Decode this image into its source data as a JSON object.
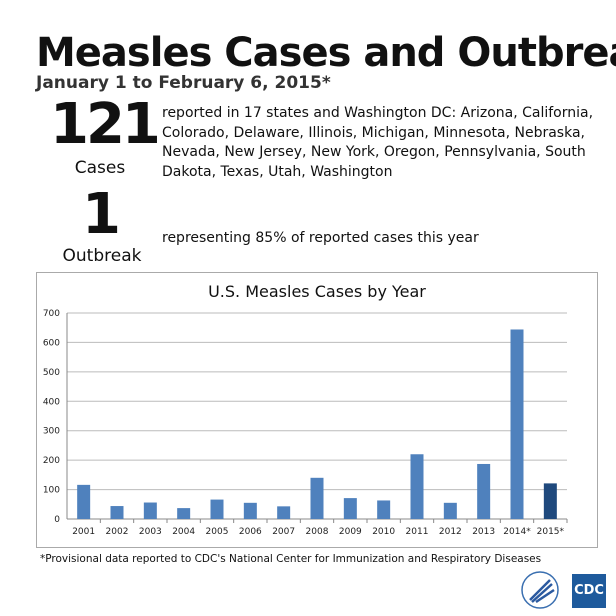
{
  "header": {
    "title": "Measles Cases and Outbreaks",
    "subtitle": "January 1 to February 6, 2015*"
  },
  "cases": {
    "number": "121",
    "label": "Cases",
    "description": "reported in 17 states and Washington DC: Arizona, California, Colorado, Delaware, Illinois, Michigan, Minnesota, Nebraska, Nevada, New Jersey, New York, Oregon, Pennsylvania, South Dakota, Texas, Utah, Washington"
  },
  "outbreaks": {
    "number": "1",
    "label": "Outbreak",
    "description": "representing 85% of reported cases this year"
  },
  "chart_data": {
    "type": "bar",
    "title": "U.S. Measles Cases by Year",
    "categories": [
      "2001",
      "2002",
      "2003",
      "2004",
      "2005",
      "2006",
      "2007",
      "2008",
      "2009",
      "2010",
      "2011",
      "2012",
      "2013",
      "2014*",
      "2015*"
    ],
    "values": [
      116,
      44,
      56,
      37,
      66,
      55,
      43,
      140,
      71,
      63,
      220,
      55,
      187,
      644,
      121
    ],
    "ylim": [
      0,
      700
    ],
    "yticks": [
      0,
      100,
      200,
      300,
      400,
      500,
      600,
      700
    ],
    "grid": true,
    "colors": {
      "default": "#4f81bd",
      "highlight": "#1f497d"
    },
    "highlight_category": "2015*"
  },
  "footnote": "*Provisional data reported to CDC's National Center for Immunization and Respiratory Diseases",
  "logos": {
    "hhs": "Department of Health & Human Services",
    "cdc": "CDC"
  }
}
